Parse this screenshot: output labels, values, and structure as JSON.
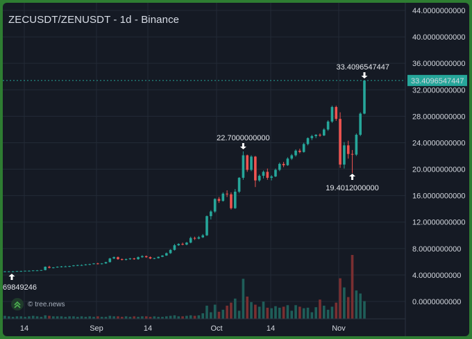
{
  "header": {
    "title": "ZECUSDT/ZENUSDT - 1d - Binance"
  },
  "watermark": {
    "text": "© tree.news",
    "icon": "chevrons-up-icon"
  },
  "colors": {
    "up": "#26a69a",
    "down": "#ef5350",
    "background": "#151a24",
    "grid": "#232a36",
    "last_price": "#26a69a",
    "frame": "#2e7d32"
  },
  "chart_data": {
    "type": "candlestick",
    "title": "ZECUSDT/ZENUSDT - 1d - Binance",
    "y_ticks": [
      "44.0000000000",
      "40.0000000000",
      "36.0000000000",
      "32.0000000000",
      "28.0000000000",
      "24.0000000000",
      "20.0000000000",
      "16.0000000000",
      "12.0000000000",
      "8.0000000000",
      "4.0000000000",
      "0.0000000000"
    ],
    "x_ticks": [
      "14",
      "Sep",
      "14",
      "Oct",
      "14",
      "Nov"
    ],
    "ylim": [
      -1.5,
      44
    ],
    "grid": true,
    "last_price_label": "33.4096547447",
    "annotations": {
      "high_label": "22.7000000000",
      "low_label": "19.4012000000",
      "peak_label": "33.4096547447",
      "left_label": "69849246"
    },
    "candles": [
      [
        4.55,
        4.6,
        4.5,
        4.55
      ],
      [
        4.55,
        4.6,
        4.5,
        4.55
      ],
      [
        4.55,
        4.6,
        4.5,
        4.55
      ],
      [
        4.55,
        4.6,
        4.5,
        4.6
      ],
      [
        4.6,
        4.65,
        4.55,
        4.6
      ],
      [
        4.6,
        4.65,
        4.55,
        4.65
      ],
      [
        4.65,
        4.7,
        4.6,
        4.65
      ],
      [
        4.65,
        4.7,
        4.6,
        4.7
      ],
      [
        4.7,
        4.75,
        4.65,
        4.7
      ],
      [
        4.7,
        4.75,
        4.65,
        4.75
      ],
      [
        4.75,
        5.3,
        4.7,
        5.25
      ],
      [
        5.25,
        5.4,
        5.0,
        5.1
      ],
      [
        5.1,
        5.2,
        5.0,
        5.15
      ],
      [
        5.15,
        5.3,
        5.1,
        5.25
      ],
      [
        5.25,
        5.35,
        5.15,
        5.3
      ],
      [
        5.3,
        5.4,
        5.2,
        5.3
      ],
      [
        5.3,
        5.4,
        5.2,
        5.35
      ],
      [
        5.35,
        5.5,
        5.3,
        5.45
      ],
      [
        5.45,
        5.55,
        5.35,
        5.5
      ],
      [
        5.5,
        5.6,
        5.4,
        5.5
      ],
      [
        5.5,
        5.65,
        5.45,
        5.6
      ],
      [
        5.6,
        5.7,
        5.5,
        5.65
      ],
      [
        5.65,
        5.8,
        5.6,
        5.75
      ],
      [
        5.75,
        5.85,
        5.6,
        5.7
      ],
      [
        5.7,
        5.8,
        5.6,
        5.75
      ],
      [
        5.75,
        6.0,
        5.7,
        5.95
      ],
      [
        5.95,
        6.6,
        5.9,
        6.5
      ],
      [
        6.5,
        6.8,
        6.4,
        6.7
      ],
      [
        6.7,
        6.8,
        6.3,
        6.4
      ],
      [
        6.4,
        6.5,
        6.2,
        6.3
      ],
      [
        6.3,
        6.5,
        6.2,
        6.4
      ],
      [
        6.4,
        6.6,
        6.3,
        6.5
      ],
      [
        6.5,
        6.6,
        6.3,
        6.4
      ],
      [
        6.4,
        6.8,
        6.3,
        6.7
      ],
      [
        6.7,
        7.0,
        6.6,
        6.85
      ],
      [
        6.85,
        6.95,
        6.6,
        6.7
      ],
      [
        6.7,
        6.8,
        6.4,
        6.5
      ],
      [
        6.5,
        6.6,
        6.4,
        6.55
      ],
      [
        6.55,
        6.8,
        6.5,
        6.75
      ],
      [
        6.75,
        7.0,
        6.7,
        6.95
      ],
      [
        6.95,
        7.4,
        6.9,
        7.3
      ],
      [
        7.3,
        7.9,
        7.2,
        7.8
      ],
      [
        7.8,
        8.7,
        7.7,
        8.5
      ],
      [
        8.5,
        8.8,
        8.4,
        8.7
      ],
      [
        8.7,
        8.9,
        8.5,
        8.6
      ],
      [
        8.6,
        9.0,
        8.5,
        8.9
      ],
      [
        8.9,
        9.8,
        8.8,
        9.6
      ],
      [
        9.6,
        9.8,
        9.3,
        9.5
      ],
      [
        9.5,
        9.9,
        9.4,
        9.7
      ],
      [
        9.7,
        10.2,
        9.6,
        10.0
      ],
      [
        10.0,
        13.0,
        9.9,
        12.9
      ],
      [
        12.9,
        13.8,
        12.4,
        13.6
      ],
      [
        13.6,
        15.6,
        13.4,
        15.5
      ],
      [
        15.5,
        15.8,
        14.9,
        15.2
      ],
      [
        15.2,
        16.5,
        15.1,
        16.3
      ],
      [
        16.3,
        16.8,
        15.8,
        16.2
      ],
      [
        16.2,
        16.5,
        13.9,
        14.1
      ],
      [
        14.1,
        17.0,
        14.0,
        16.6
      ],
      [
        16.6,
        18.8,
        16.4,
        18.7
      ],
      [
        18.7,
        22.7,
        18.4,
        22.1
      ],
      [
        22.1,
        22.2,
        19.6,
        19.9
      ],
      [
        19.9,
        22.1,
        19.7,
        21.9
      ],
      [
        21.9,
        22.0,
        17.3,
        18.3
      ],
      [
        18.3,
        19.2,
        18.1,
        19.0
      ],
      [
        19.0,
        19.8,
        18.6,
        19.6
      ],
      [
        19.6,
        20.1,
        18.4,
        18.7
      ],
      [
        18.7,
        19.1,
        18.3,
        18.9
      ],
      [
        18.9,
        20.1,
        18.8,
        19.9
      ],
      [
        19.9,
        21.0,
        19.7,
        20.8
      ],
      [
        20.8,
        21.1,
        20.3,
        20.6
      ],
      [
        20.6,
        21.8,
        20.5,
        21.6
      ],
      [
        21.6,
        22.3,
        21.4,
        22.1
      ],
      [
        22.1,
        23.0,
        21.9,
        22.8
      ],
      [
        22.8,
        23.1,
        22.4,
        22.6
      ],
      [
        22.6,
        24.0,
        22.5,
        23.8
      ],
      [
        23.8,
        24.8,
        23.6,
        24.7
      ],
      [
        24.7,
        25.2,
        24.4,
        25.0
      ],
      [
        25.0,
        25.3,
        24.7,
        25.2
      ],
      [
        25.2,
        25.4,
        24.9,
        25.1
      ],
      [
        25.1,
        26.2,
        25.0,
        26.0
      ],
      [
        26.0,
        27.4,
        25.8,
        27.2
      ],
      [
        27.2,
        29.6,
        27.0,
        29.4
      ],
      [
        29.4,
        29.6,
        27.3,
        27.6
      ],
      [
        27.6,
        28.6,
        20.2,
        20.7
      ],
      [
        20.7,
        24.1,
        20.1,
        23.6
      ],
      [
        23.6,
        24.3,
        21.6,
        22.3
      ],
      [
        22.3,
        22.9,
        19.4,
        22.2
      ],
      [
        22.2,
        25.4,
        22.0,
        25.2
      ],
      [
        25.2,
        28.6,
        25.0,
        28.4
      ],
      [
        28.4,
        33.4,
        28.3,
        33.4
      ]
    ],
    "volumes": [
      0.6,
      0.5,
      0.4,
      0.5,
      0.5,
      0.4,
      0.5,
      0.6,
      0.5,
      0.4,
      0.7,
      0.6,
      0.5,
      0.5,
      0.5,
      0.4,
      0.5,
      0.5,
      0.4,
      0.5,
      0.4,
      0.5,
      0.4,
      0.5,
      0.4,
      0.4,
      0.6,
      0.5,
      0.5,
      0.4,
      0.5,
      0.4,
      0.5,
      0.4,
      0.5,
      0.5,
      0.4,
      0.5,
      0.4,
      0.4,
      0.5,
      0.6,
      0.7,
      0.5,
      0.5,
      0.6,
      0.7,
      0.6,
      0.7,
      1.1,
      2.6,
      1.3,
      2.8,
      1.4,
      1.8,
      2.6,
      3.2,
      4.0,
      1.6,
      7.9,
      4.4,
      3.3,
      2.8,
      2.4,
      3.4,
      2.2,
      2.1,
      2.5,
      2.2,
      2.4,
      2.7,
      1.6,
      2.7,
      2.4,
      2.1,
      2.2,
      1.3,
      2.3,
      3.8,
      2.6,
      1.8,
      2.4,
      3.2,
      8.0,
      6.2,
      4.3,
      12.6,
      5.6,
      5.0,
      3.5
    ]
  }
}
